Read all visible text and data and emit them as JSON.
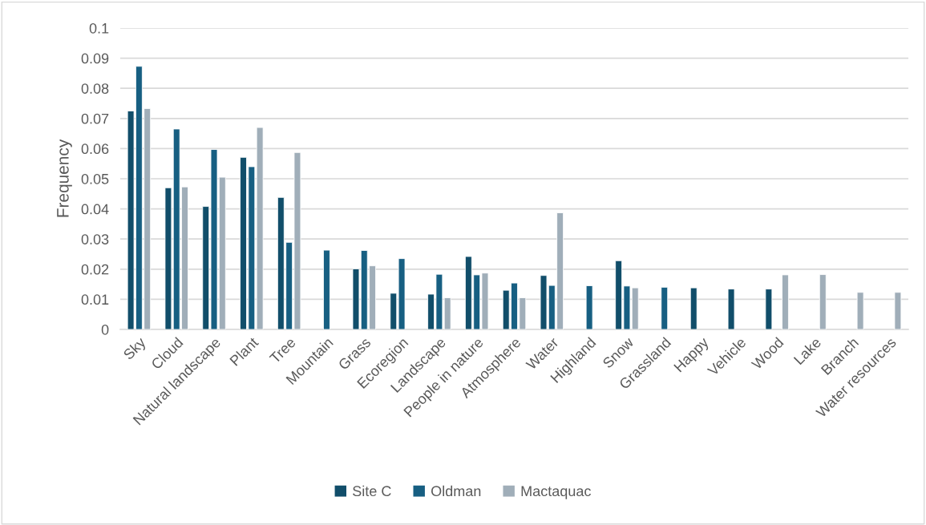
{
  "chart_data": {
    "type": "bar",
    "ylabel": "Frequency",
    "categories": [
      "Sky",
      "Cloud",
      "Natural landscape",
      "Plant",
      "Tree",
      "Mountain",
      "Grass",
      "Ecoregion",
      "Landscape",
      "People in nature",
      "Atmosphere",
      "Water",
      "Highland",
      "Snow",
      "Grassland",
      "Happy",
      "Vehicle",
      "Wood",
      "Lake",
      "Branch",
      "Water resources"
    ],
    "series": [
      {
        "name": "Site C",
        "color": "#114e6a",
        "values": [
          0.0725,
          0.047,
          0.0408,
          0.0571,
          0.0438,
          null,
          0.0201,
          0.012,
          0.0117,
          0.0242,
          0.013,
          0.0179,
          null,
          0.0228,
          null,
          0.0138,
          0.0134,
          0.0134,
          null,
          null,
          null
        ]
      },
      {
        "name": "Oldman",
        "color": "#175f82",
        "values": [
          0.0873,
          0.0665,
          0.0597,
          0.054,
          0.0289,
          0.0263,
          0.0262,
          0.0235,
          0.0183,
          0.0181,
          0.0154,
          0.0146,
          0.0145,
          0.0144,
          0.014,
          null,
          null,
          null,
          null,
          null,
          null
        ]
      },
      {
        "name": "Mactaquac",
        "color": "#a0aeb9",
        "values": [
          0.0733,
          0.0473,
          0.0505,
          0.067,
          0.0587,
          null,
          0.0211,
          null,
          0.0105,
          0.0187,
          0.0105,
          0.0387,
          null,
          0.0138,
          null,
          null,
          null,
          0.0181,
          0.0182,
          0.0123,
          0.0123
        ]
      }
    ],
    "ylim": [
      0,
      0.1
    ],
    "yticks": [
      0,
      0.01,
      0.02,
      0.03,
      0.04,
      0.05,
      0.06,
      0.07,
      0.08,
      0.09,
      0.1
    ],
    "grid": "y",
    "legend": "bottom"
  }
}
